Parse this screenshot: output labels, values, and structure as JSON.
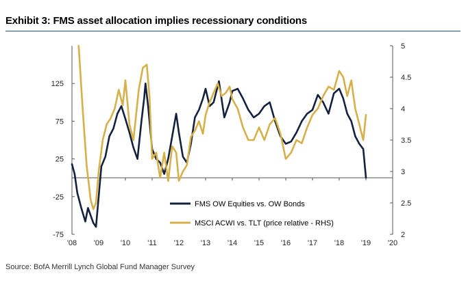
{
  "header": {
    "title": "Exhibit 3: FMS asset allocation implies recessionary conditions"
  },
  "footer": {
    "source": "Source:  BofA Merrill Lynch Global Fund Manager Survey"
  },
  "colors": {
    "fms": "#14213d",
    "msci": "#d6b04a",
    "rule": "#1f4e8a",
    "axis": "#555555"
  },
  "chart_data": {
    "type": "line",
    "title": "Exhibit 3: FMS asset allocation implies recessionary conditions",
    "xlabel": "",
    "ylabel": "",
    "xlim": [
      2008,
      2020
    ],
    "ylim_left": [
      -75,
      175
    ],
    "ylim_right": [
      2,
      5
    ],
    "x_ticks": [
      "'08",
      "'09",
      "'10",
      "'11",
      "'12",
      "'13",
      "'14",
      "'15",
      "'16",
      "'17",
      "'18",
      "'19",
      "'20"
    ],
    "y_ticks_left": [
      "-75",
      "-25",
      "25",
      "75",
      "125"
    ],
    "y_ticks_left_values": [
      -75,
      -25,
      25,
      75,
      125
    ],
    "y_ticks_right": [
      "2",
      "2.5",
      "3",
      "3.5",
      "4",
      "4.5",
      "5"
    ],
    "y_ticks_right_values": [
      2,
      2.5,
      3,
      3.5,
      4,
      4.5,
      5
    ],
    "legend": [
      "FMS OW Equities vs. OW Bonds",
      "MSCI ACWI vs. TLT (price relative - RHS)"
    ],
    "legend_position": "lower-center",
    "series": [
      {
        "name": "FMS OW Equities vs. OW Bonds",
        "axis": "left",
        "x": [
          2008.0,
          2008.1,
          2008.2,
          2008.35,
          2008.5,
          2008.6,
          2008.7,
          2008.8,
          2008.9,
          2009.0,
          2009.1,
          2009.25,
          2009.4,
          2009.55,
          2009.7,
          2009.85,
          2010.0,
          2010.15,
          2010.3,
          2010.45,
          2010.6,
          2010.7,
          2010.75,
          2010.85,
          2011.0,
          2011.15,
          2011.3,
          2011.45,
          2011.6,
          2011.75,
          2011.9,
          2012.0,
          2012.15,
          2012.3,
          2012.45,
          2012.6,
          2012.75,
          2012.9,
          2013.0,
          2013.15,
          2013.3,
          2013.5,
          2013.7,
          2013.9,
          2014.0,
          2014.2,
          2014.4,
          2014.6,
          2014.8,
          2015.0,
          2015.2,
          2015.4,
          2015.6,
          2015.8,
          2016.0,
          2016.2,
          2016.4,
          2016.6,
          2016.8,
          2017.0,
          2017.2,
          2017.4,
          2017.6,
          2017.8,
          2018.0,
          2018.15,
          2018.3,
          2018.45,
          2018.6,
          2018.75,
          2018.9,
          2019.0
        ],
        "y": [
          18,
          5,
          -20,
          -40,
          -58,
          -40,
          -50,
          -60,
          -65,
          -25,
          15,
          28,
          55,
          65,
          85,
          95,
          78,
          60,
          40,
          25,
          75,
          105,
          125,
          95,
          38,
          25,
          20,
          5,
          25,
          55,
          85,
          60,
          28,
          20,
          45,
          80,
          90,
          105,
          118,
          95,
          100,
          128,
          80,
          100,
          115,
          118,
          105,
          90,
          80,
          85,
          95,
          100,
          75,
          55,
          45,
          48,
          60,
          75,
          85,
          90,
          110,
          100,
          85,
          112,
          118,
          105,
          85,
          75,
          55,
          45,
          38,
          0
        ]
      },
      {
        "name": "MSCI ACWI vs. TLT (price relative - RHS)",
        "axis": "right",
        "x": [
          2008.25,
          2008.4,
          2008.55,
          2008.7,
          2008.8,
          2008.9,
          2009.0,
          2009.15,
          2009.3,
          2009.45,
          2009.6,
          2009.75,
          2009.9,
          2010.0,
          2010.15,
          2010.3,
          2010.5,
          2010.65,
          2010.8,
          2010.9,
          2011.0,
          2011.15,
          2011.3,
          2011.45,
          2011.6,
          2011.75,
          2011.9,
          2012.0,
          2012.15,
          2012.3,
          2012.45,
          2012.6,
          2012.75,
          2012.9,
          2013.0,
          2013.15,
          2013.3,
          2013.45,
          2013.6,
          2013.75,
          2013.9,
          2014.0,
          2014.2,
          2014.4,
          2014.6,
          2014.8,
          2015.0,
          2015.2,
          2015.4,
          2015.6,
          2015.8,
          2016.0,
          2016.2,
          2016.4,
          2016.6,
          2016.8,
          2017.0,
          2017.2,
          2017.4,
          2017.6,
          2017.8,
          2018.0,
          2018.15,
          2018.3,
          2018.45,
          2018.6,
          2018.75,
          2018.9,
          2019.0
        ],
        "y": [
          5.0,
          4.0,
          3.1,
          2.55,
          2.4,
          2.5,
          3.0,
          3.5,
          3.75,
          3.85,
          4.0,
          4.3,
          4.05,
          4.45,
          3.75,
          3.5,
          4.3,
          4.65,
          4.7,
          4.2,
          3.2,
          3.3,
          2.9,
          3.3,
          2.85,
          3.4,
          3.3,
          2.85,
          3.0,
          3.1,
          3.55,
          3.65,
          3.8,
          3.6,
          3.9,
          4.1,
          4.25,
          4.4,
          4.2,
          4.25,
          4.35,
          4.15,
          4.0,
          3.7,
          3.5,
          3.5,
          3.7,
          3.5,
          3.75,
          3.85,
          3.6,
          3.2,
          3.3,
          3.5,
          3.45,
          3.7,
          3.9,
          4.0,
          4.2,
          4.35,
          4.3,
          4.6,
          4.5,
          4.2,
          4.45,
          4.0,
          3.75,
          3.5,
          3.9
        ]
      }
    ]
  }
}
